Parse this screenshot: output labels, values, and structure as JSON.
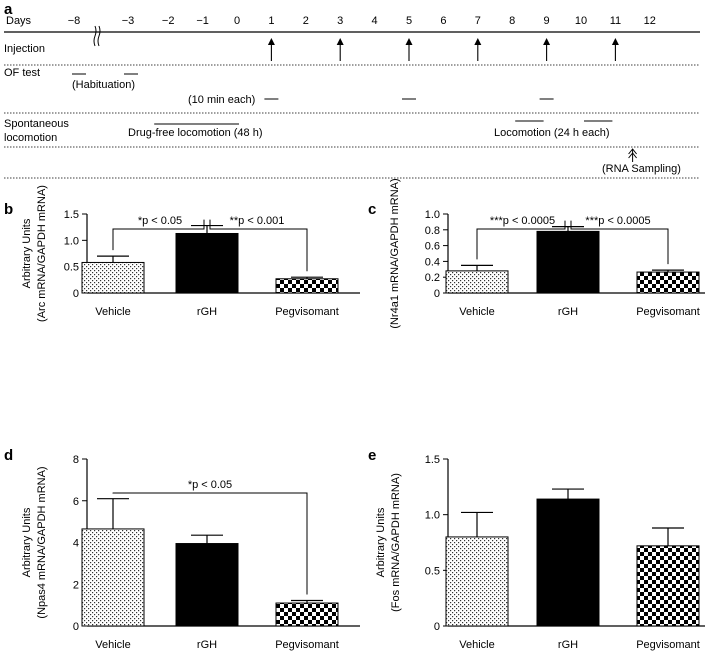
{
  "timeline": {
    "panel_letter": "a",
    "days_label": "Days",
    "days": [
      "−8",
      "−3",
      "−2",
      "−1",
      "0",
      "1",
      "2",
      "3",
      "4",
      "5",
      "6",
      "7",
      "8",
      "9",
      "10",
      "11",
      "12"
    ],
    "rows": {
      "injection": "Injection",
      "of_test": "OF test",
      "spontaneous_1": "Spontaneous",
      "spontaneous_2": "locomotion"
    },
    "annotations": {
      "habituation": "(Habituation)",
      "ten_min": "(10 min each)",
      "drug_free": "Drug-free locomotion (48 h)",
      "locomotion24": "Locomotion (24 h each)",
      "rna": "(RNA Sampling)"
    },
    "injection_days": [
      1,
      3,
      5,
      7,
      9,
      11
    ],
    "of_test_days": [
      1,
      5,
      9
    ],
    "locomotion_days": [
      [
        8,
        9
      ],
      [
        10,
        11
      ]
    ],
    "drug_free_range": [
      -2,
      0
    ],
    "rna_day": 11.5
  },
  "chart_data": [
    {
      "panel": "b",
      "type": "bar",
      "categories": [
        "Vehicle",
        "rGH",
        "Pegvisomant"
      ],
      "values": [
        0.58,
        1.13,
        0.27
      ],
      "errors": [
        0.12,
        0.15,
        0.03
      ],
      "ylim": [
        0,
        1.5
      ],
      "yticks": [
        "0",
        "0.5",
        "1.0",
        "1.5"
      ],
      "ytick_values": [
        0,
        0.5,
        1.0,
        1.5
      ],
      "ylabel_line1": "Arbitrary Units",
      "ylabel_line2": "(Arc mRNA/GAPDH mRNA)",
      "significance": [
        {
          "from": 0,
          "to": 1,
          "label": "*p < 0.05"
        },
        {
          "from": 1,
          "to": 2,
          "label": "**p < 0.001"
        }
      ]
    },
    {
      "panel": "c",
      "type": "bar",
      "categories": [
        "Vehicle",
        "rGH",
        "Pegvisomant"
      ],
      "values": [
        0.28,
        0.78,
        0.265
      ],
      "errors": [
        0.07,
        0.06,
        0.025
      ],
      "ylim": [
        0,
        1.0
      ],
      "yticks": [
        "0",
        "0.2",
        "0.4",
        "0.6",
        "0.8",
        "1.0"
      ],
      "ytick_values": [
        0,
        0.2,
        0.4,
        0.6,
        0.8,
        1.0
      ],
      "ylabel_line1": "",
      "ylabel_line2": "(Nr4a1 mRNA/GAPDH mRNA)",
      "significance": [
        {
          "from": 0,
          "to": 1,
          "label": "***p < 0.0005"
        },
        {
          "from": 1,
          "to": 2,
          "label": "***p < 0.0005"
        }
      ]
    },
    {
      "panel": "d",
      "type": "bar",
      "categories": [
        "Vehicle",
        "rGH",
        "Pegvisomant"
      ],
      "values": [
        4.65,
        3.95,
        1.1
      ],
      "errors": [
        1.45,
        0.4,
        0.12
      ],
      "ylim": [
        0,
        8
      ],
      "yticks": [
        "0",
        "2",
        "4",
        "6",
        "8"
      ],
      "ytick_values": [
        0,
        2,
        4,
        6,
        8
      ],
      "ylabel_line1": "Arbitrary Units",
      "ylabel_line2": "(Npas4 mRNA/GAPDH mRNA)",
      "significance": [
        {
          "from": 0,
          "to": 2,
          "label": "*p < 0.05"
        }
      ]
    },
    {
      "panel": "e",
      "type": "bar",
      "categories": [
        "Vehicle",
        "rGH",
        "Pegvisomant"
      ],
      "values": [
        0.8,
        1.14,
        0.72
      ],
      "errors": [
        0.22,
        0.09,
        0.16
      ],
      "ylim": [
        0,
        1.5
      ],
      "yticks": [
        "0",
        "0.5",
        "1.0",
        "1.5"
      ],
      "ytick_values": [
        0,
        0.5,
        1.0,
        1.5
      ],
      "ylabel_line1": "Arbitrary Units",
      "ylabel_line2": "(Fos mRNA/GAPDH mRNA)",
      "significance": []
    }
  ]
}
